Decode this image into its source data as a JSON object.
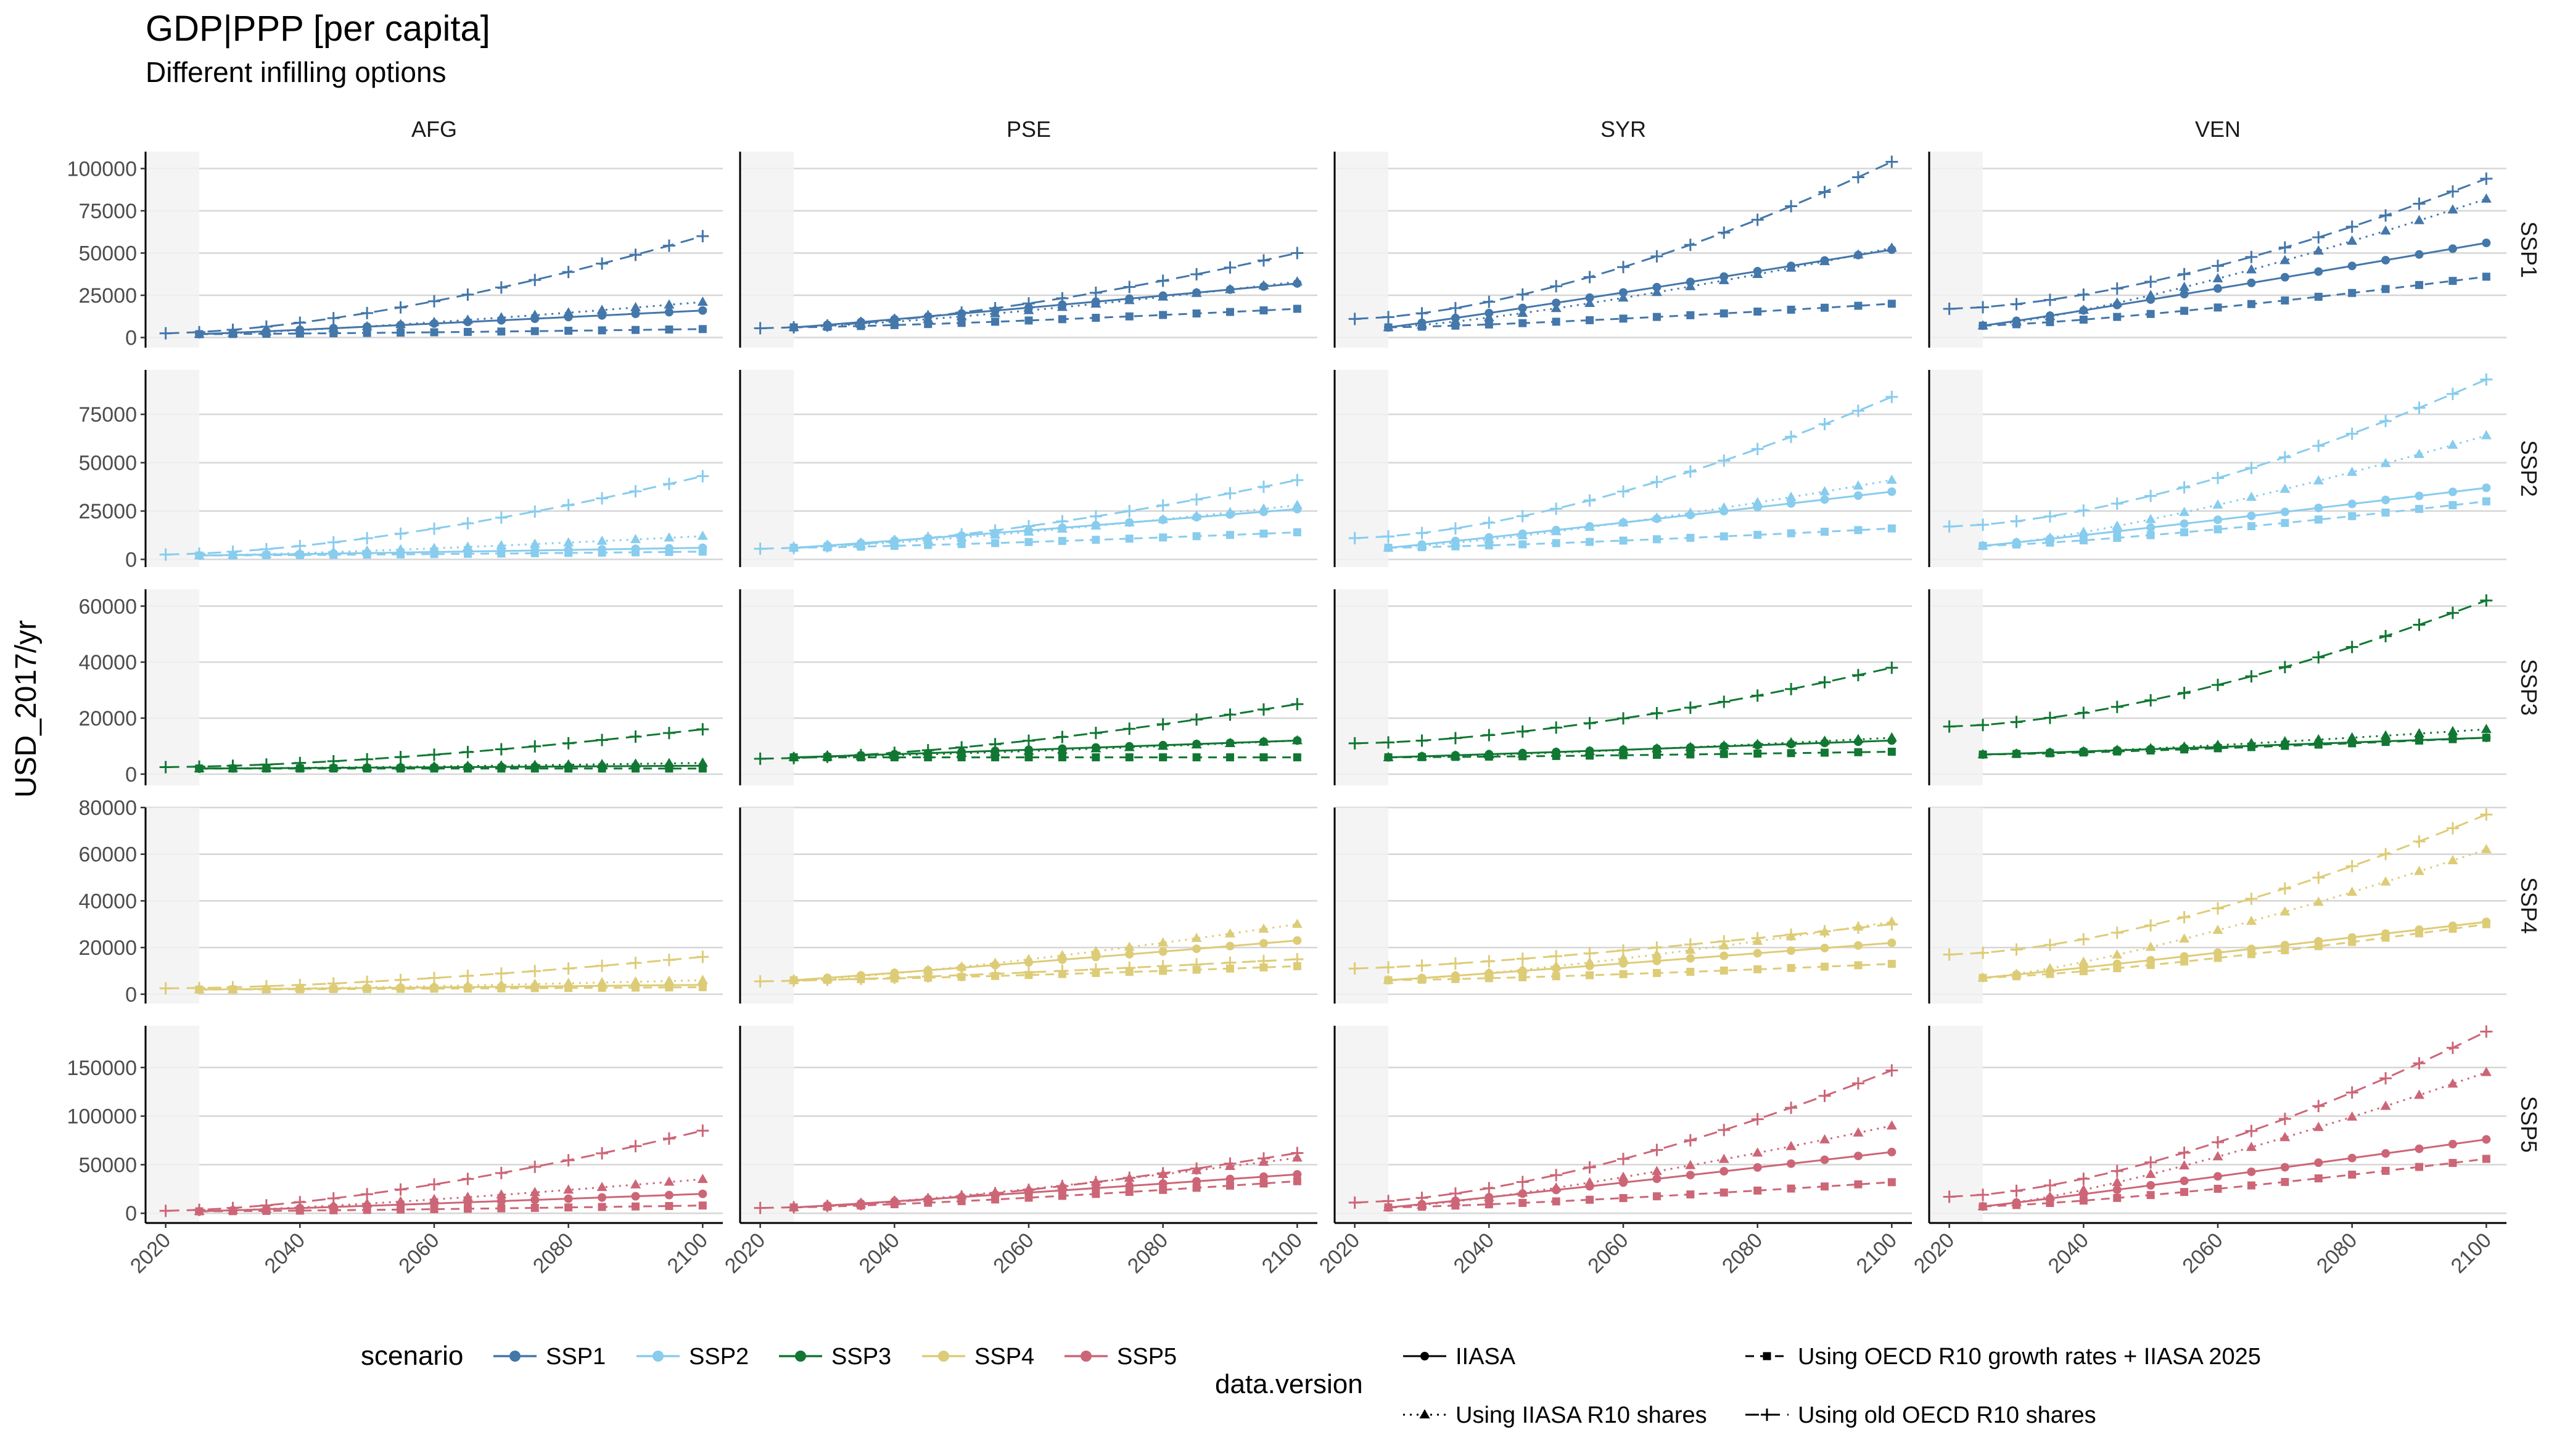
{
  "title": "GDP|PPP [per capita]",
  "subtitle": "Different infilling options",
  "chart_data": {
    "type": "line",
    "ylabel": "USD_2017/yr",
    "columns": [
      "AFG",
      "PSE",
      "SYR",
      "VEN"
    ],
    "rows": [
      "SSP1",
      "SSP2",
      "SSP3",
      "SSP4",
      "SSP5"
    ],
    "xlim": [
      2017,
      2103
    ],
    "x_ticks": [
      "2020",
      "2040",
      "2060",
      "2080",
      "2100"
    ],
    "historical_band": [
      2017,
      2025
    ],
    "row_scales": [
      {
        "ylim": [
          -6000,
          110000
        ],
        "ticks": [
          "0",
          "25000",
          "50000",
          "75000",
          "100000"
        ],
        "tick_values": [
          0,
          25000,
          50000,
          75000,
          100000
        ]
      },
      {
        "ylim": [
          -4000,
          98000
        ],
        "ticks": [
          "0",
          "25000",
          "50000",
          "75000"
        ],
        "tick_values": [
          0,
          25000,
          50000,
          75000
        ]
      },
      {
        "ylim": [
          -4000,
          66000
        ],
        "ticks": [
          "0",
          "20000",
          "40000",
          "60000"
        ],
        "tick_values": [
          0,
          20000,
          40000,
          60000
        ]
      },
      {
        "ylim": [
          -4000,
          80000
        ],
        "ticks": [
          "0",
          "20000",
          "40000",
          "60000",
          "80000"
        ],
        "tick_values": [
          0,
          20000,
          40000,
          60000,
          80000
        ]
      },
      {
        "ylim": [
          -10000,
          193000
        ],
        "ticks": [
          "0",
          "50000",
          "100000",
          "150000"
        ],
        "tick_values": [
          0,
          50000,
          100000,
          150000
        ]
      }
    ],
    "scenario_colors": {
      "SSP1": "#4477aa",
      "SSP2": "#88ccee",
      "SSP3": "#117733",
      "SSP4": "#ddcc77",
      "SSP5": "#cc6677"
    },
    "data_versions": [
      {
        "name": "IIASA",
        "marker": "circle",
        "dash": "solid"
      },
      {
        "name": "Using IIASA R10 shares",
        "marker": "triangle",
        "dash": "dotted"
      },
      {
        "name": "Using OECD R10 growth rates + IIASA 2025",
        "marker": "square",
        "dash": "dashed"
      },
      {
        "name": "Using old OECD R10 shares",
        "marker": "plus",
        "dash": "longdash"
      }
    ],
    "panels": {
      "AFG": {
        "SSP1": {
          "IIASA": [
            2000,
            16000
          ],
          "Using IIASA R10 shares": [
            2000,
            21000
          ],
          "Using OECD R10 growth rates + IIASA 2025": [
            2000,
            5000
          ],
          "Using old OECD R10 shares": [
            2500,
            60000
          ]
        },
        "SSP2": {
          "IIASA": [
            2000,
            6000
          ],
          "Using IIASA R10 shares": [
            2000,
            12000
          ],
          "Using OECD R10 growth rates + IIASA 2025": [
            2000,
            4000
          ],
          "Using old OECD R10 shares": [
            2500,
            43000
          ]
        },
        "SSP3": {
          "IIASA": [
            2000,
            3000
          ],
          "Using IIASA R10 shares": [
            2000,
            4000
          ],
          "Using OECD R10 growth rates + IIASA 2025": [
            2000,
            2000
          ],
          "Using old OECD R10 shares": [
            2500,
            16000
          ]
        },
        "SSP4": {
          "IIASA": [
            2000,
            4000
          ],
          "Using IIASA R10 shares": [
            2000,
            6000
          ],
          "Using OECD R10 growth rates + IIASA 2025": [
            2000,
            3000
          ],
          "Using old OECD R10 shares": [
            2500,
            16000
          ]
        },
        "SSP5": {
          "IIASA": [
            2000,
            20000
          ],
          "Using IIASA R10 shares": [
            2000,
            35000
          ],
          "Using OECD R10 growth rates + IIASA 2025": [
            2000,
            8000
          ],
          "Using old OECD R10 shares": [
            2500,
            85000
          ]
        }
      },
      "PSE": {
        "SSP1": {
          "IIASA": [
            6000,
            32000
          ],
          "Using IIASA R10 shares": [
            6000,
            33000
          ],
          "Using OECD R10 growth rates + IIASA 2025": [
            6000,
            17000
          ],
          "Using old OECD R10 shares": [
            5500,
            50000
          ]
        },
        "SSP2": {
          "IIASA": [
            6000,
            26000
          ],
          "Using IIASA R10 shares": [
            6000,
            28000
          ],
          "Using OECD R10 growth rates + IIASA 2025": [
            6000,
            14000
          ],
          "Using old OECD R10 shares": [
            5500,
            41000
          ]
        },
        "SSP3": {
          "IIASA": [
            6000,
            12000
          ],
          "Using IIASA R10 shares": [
            6000,
            12000
          ],
          "Using OECD R10 growth rates + IIASA 2025": [
            6000,
            6000
          ],
          "Using old OECD R10 shares": [
            5500,
            25000
          ]
        },
        "SSP4": {
          "IIASA": [
            6000,
            23000
          ],
          "Using IIASA R10 shares": [
            6000,
            30000
          ],
          "Using OECD R10 growth rates + IIASA 2025": [
            6000,
            12000
          ],
          "Using old OECD R10 shares": [
            5500,
            15000
          ]
        },
        "SSP5": {
          "IIASA": [
            6000,
            40000
          ],
          "Using IIASA R10 shares": [
            6000,
            57000
          ],
          "Using OECD R10 growth rates + IIASA 2025": [
            6000,
            33000
          ],
          "Using old OECD R10 shares": [
            5500,
            62000
          ]
        }
      },
      "SYR": {
        "SSP1": {
          "IIASA": [
            6000,
            52000
          ],
          "Using IIASA R10 shares": [
            6000,
            53000
          ],
          "Using OECD R10 growth rates + IIASA 2025": [
            6000,
            20000
          ],
          "Using old OECD R10 shares": [
            11000,
            104000
          ]
        },
        "SSP2": {
          "IIASA": [
            6000,
            35000
          ],
          "Using IIASA R10 shares": [
            6000,
            41000
          ],
          "Using OECD R10 growth rates + IIASA 2025": [
            6000,
            16000
          ],
          "Using old OECD R10 shares": [
            11000,
            84000
          ]
        },
        "SSP3": {
          "IIASA": [
            6000,
            12000
          ],
          "Using IIASA R10 shares": [
            6000,
            13000
          ],
          "Using OECD R10 growth rates + IIASA 2025": [
            6000,
            8000
          ],
          "Using old OECD R10 shares": [
            11000,
            38000
          ]
        },
        "SSP4": {
          "IIASA": [
            6000,
            22000
          ],
          "Using IIASA R10 shares": [
            6000,
            31000
          ],
          "Using OECD R10 growth rates + IIASA 2025": [
            6000,
            13000
          ],
          "Using old OECD R10 shares": [
            11000,
            30000
          ]
        },
        "SSP5": {
          "IIASA": [
            6000,
            63000
          ],
          "Using IIASA R10 shares": [
            6000,
            90000
          ],
          "Using OECD R10 growth rates + IIASA 2025": [
            6000,
            32000
          ],
          "Using old OECD R10 shares": [
            11000,
            147000
          ]
        }
      },
      "VEN": {
        "SSP1": {
          "IIASA": [
            7000,
            56000
          ],
          "Using IIASA R10 shares": [
            7000,
            82000
          ],
          "Using OECD R10 growth rates + IIASA 2025": [
            7000,
            36000
          ],
          "Using old OECD R10 shares": [
            17000,
            94000
          ]
        },
        "SSP2": {
          "IIASA": [
            7000,
            37000
          ],
          "Using IIASA R10 shares": [
            7000,
            64000
          ],
          "Using OECD R10 growth rates + IIASA 2025": [
            7000,
            30000
          ],
          "Using old OECD R10 shares": [
            17000,
            93000
          ]
        },
        "SSP3": {
          "IIASA": [
            7000,
            13000
          ],
          "Using IIASA R10 shares": [
            7000,
            16000
          ],
          "Using OECD R10 growth rates + IIASA 2025": [
            7000,
            13000
          ],
          "Using old OECD R10 shares": [
            17000,
            62000
          ]
        },
        "SSP4": {
          "IIASA": [
            7000,
            31000
          ],
          "Using IIASA R10 shares": [
            7000,
            62000
          ],
          "Using OECD R10 growth rates + IIASA 2025": [
            7000,
            30000
          ],
          "Using old OECD R10 shares": [
            17000,
            77000
          ]
        },
        "SSP5": {
          "IIASA": [
            7000,
            76000
          ],
          "Using IIASA R10 shares": [
            7000,
            145000
          ],
          "Using OECD R10 growth rates + IIASA 2025": [
            7000,
            56000
          ],
          "Using old OECD R10 shares": [
            17000,
            187000
          ]
        }
      }
    },
    "legend": {
      "scenario_title": "scenario",
      "scenarios": [
        "SSP1",
        "SSP2",
        "SSP3",
        "SSP4",
        "SSP5"
      ],
      "data_version_title": "data.version"
    }
  }
}
